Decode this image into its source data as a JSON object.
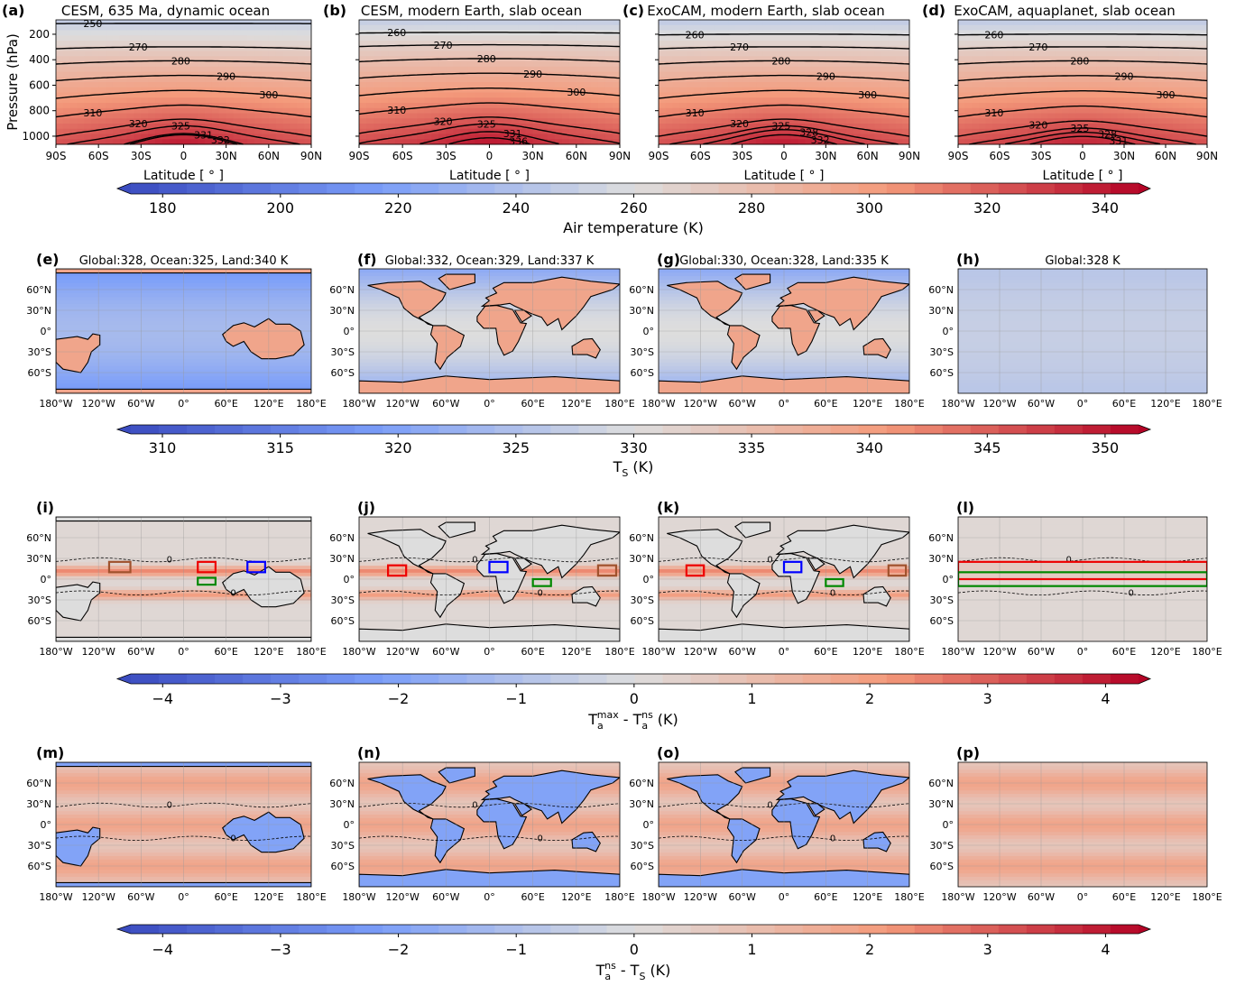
{
  "section_row": {
    "ylabel": "Pressure (hPa)",
    "xlabel": "Latitude [ ° ]",
    "xlim": [
      -90,
      90
    ],
    "xticks": [
      {
        "value": -90,
        "label": "90S"
      },
      {
        "value": -60,
        "label": "60S"
      },
      {
        "value": -30,
        "label": "30S"
      },
      0,
      {
        "value": 30,
        "label": "30N"
      },
      {
        "value": 60,
        "label": "60N"
      },
      {
        "value": 90,
        "label": "90N"
      }
    ],
    "ylim": [
      1064,
      87
    ],
    "yticks": [
      200,
      400,
      600,
      800,
      1000
    ],
    "panels": [
      {
        "letter": "(a)",
        "title": "CESM, 635 Ma, dynamic ocean",
        "contour_levels": [
          250,
          270,
          280,
          290,
          300,
          310,
          320,
          325,
          331,
          332
        ]
      },
      {
        "letter": "(b)",
        "title": "CESM, modern Earth, slab ocean",
        "contour_levels": [
          260,
          270,
          280,
          290,
          300,
          310,
          320,
          325,
          331,
          336
        ]
      },
      {
        "letter": "(c)",
        "title": "ExoCAM, modern Earth, slab ocean",
        "contour_levels": [
          260,
          270,
          280,
          290,
          300,
          310,
          320,
          325,
          328,
          332
        ]
      },
      {
        "letter": "(d)",
        "title": "ExoCAM, aquaplanet, slab ocean",
        "contour_levels": [
          260,
          270,
          280,
          290,
          300,
          310,
          320,
          325,
          328,
          331
        ]
      }
    ],
    "colorbar": {
      "lim": [
        174.6,
        345.7
      ],
      "ticks": [
        180,
        200,
        220,
        240,
        260,
        280,
        300,
        320,
        340
      ],
      "label": [
        {
          "text": "Air temperature (K)"
        }
      ]
    }
  },
  "map_axes": {
    "xlim": [
      -180,
      180
    ],
    "ylim": [
      -90,
      90
    ],
    "xticks": [
      {
        "value": -180,
        "label": "180°W"
      },
      {
        "value": -120,
        "label": "120°W"
      },
      {
        "value": -60,
        "label": "60°W"
      },
      {
        "value": 0,
        "label": "0°"
      },
      {
        "value": 60,
        "label": "60°E"
      },
      {
        "value": 120,
        "label": "120°E"
      },
      {
        "value": 180,
        "label": "180°E"
      }
    ],
    "yticks": [
      {
        "value": 60,
        "label": "60°N"
      },
      {
        "value": 30,
        "label": "30°N"
      },
      {
        "value": 0,
        "label": "0°"
      },
      {
        "value": -30,
        "label": "30°S"
      },
      {
        "value": -60,
        "label": "60°S"
      }
    ]
  },
  "map_rows": [
    {
      "field": "ts",
      "panels": [
        {
          "letter": "(e)",
          "title": "Global:328, Ocean:325, Land:340 K",
          "continents": "ancient"
        },
        {
          "letter": "(f)",
          "title": "Global:332, Ocean:329, Land:337 K",
          "continents": "modern"
        },
        {
          "letter": "(g)",
          "title": "Global:330, Ocean:328, Land:335 K",
          "continents": "modern"
        },
        {
          "letter": "(h)",
          "title": "Global:328 K",
          "continents": "none"
        }
      ],
      "colorbar": {
        "lim": [
          308.66,
          351.42
        ],
        "ticks": [
          310,
          315,
          320,
          325,
          330,
          335,
          340,
          345,
          350
        ],
        "label": [
          {
            "text": "T"
          },
          {
            "text": "S",
            "shift": "sub"
          },
          {
            "text": "(K)"
          }
        ]
      }
    },
    {
      "field": "tmax",
      "panels": [
        {
          "letter": "(i)",
          "continents": "ancient",
          "contour_levels": [
            0
          ]
        },
        {
          "letter": "(j)",
          "continents": "modern",
          "contour_levels": [
            0
          ]
        },
        {
          "letter": "(k)",
          "continents": "modern",
          "contour_levels": [
            0
          ]
        },
        {
          "letter": "(l)",
          "continents": "none",
          "contour_levels": [
            0
          ]
        }
      ],
      "colorbar": {
        "lim": [
          -4.27,
          4.28
        ],
        "ticks": [
          {
            "value": -4,
            "label": "−4"
          },
          {
            "value": -3,
            "label": "−3"
          },
          {
            "value": -2,
            "label": "−2"
          },
          {
            "value": -1,
            "label": "−1"
          },
          0,
          1,
          2,
          3,
          4
        ],
        "label": [
          {
            "text": "T"
          },
          {
            "text": "a",
            "shift": "sub"
          },
          {
            "text": "max",
            "shift": "sup"
          },
          {
            "text": "- T"
          },
          {
            "text": "a",
            "shift": "sub"
          },
          {
            "text": "ns",
            "shift": "sup"
          },
          {
            "text": "(K)"
          }
        ]
      }
    },
    {
      "field": "tdiff",
      "panels": [
        {
          "letter": "(m)",
          "continents": "ancient",
          "contour_levels": [
            0
          ]
        },
        {
          "letter": "(n)",
          "continents": "modern",
          "contour_levels": [
            0
          ]
        },
        {
          "letter": "(o)",
          "continents": "modern",
          "contour_levels": [
            0
          ]
        },
        {
          "letter": "(p)",
          "continents": "none"
        }
      ],
      "colorbar": {
        "lim": [
          -4.27,
          4.28
        ],
        "ticks": [
          {
            "value": -4,
            "label": "−4"
          },
          {
            "value": -3,
            "label": "−3"
          },
          {
            "value": -2,
            "label": "−2"
          },
          {
            "value": -1,
            "label": "−1"
          },
          0,
          1,
          2,
          3,
          4
        ],
        "label": [
          {
            "text": "T"
          },
          {
            "text": "a",
            "shift": "sub"
          },
          {
            "text": "ns",
            "shift": "sup"
          },
          {
            "text": "- T"
          },
          {
            "text": "S",
            "shift": "sub"
          },
          {
            "text": "(K)"
          }
        ]
      }
    }
  ]
}
